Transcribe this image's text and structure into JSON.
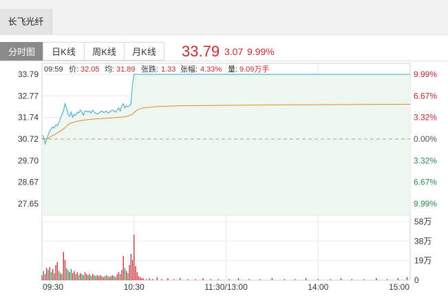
{
  "stock": {
    "name": "长飞光纤"
  },
  "tabs": [
    {
      "label": "分时图",
      "active": true
    },
    {
      "label": "日K线",
      "active": false
    },
    {
      "label": "周K线",
      "active": false
    },
    {
      "label": "月K线",
      "active": false
    }
  ],
  "quote": {
    "price": "33.79",
    "change": "3.07",
    "change_pct": "9.99%"
  },
  "info": {
    "time": "09:59",
    "price_label": "价:",
    "price": "32.05",
    "avg_label": "均:",
    "avg": "31.89",
    "change_label": "张跌:",
    "change": "1.33",
    "pct_label": "张幅:",
    "pct": "4.33%",
    "vol_label": "量:",
    "vol": "9.09万手"
  },
  "colors": {
    "up": "#c8282d",
    "down": "#2e8b57",
    "price_line": "#3aa6c8",
    "avg_line": "#e08a1e",
    "fill": "#eef6f1"
  },
  "chart_data": {
    "type": "line",
    "prev_close": 30.72,
    "y_ticks": [
      "33.79",
      "32.77",
      "31.74",
      "30.72",
      "29.70",
      "28.67",
      "27.65"
    ],
    "pct_ticks": [
      {
        "label": "9.99%",
        "dir": "up"
      },
      {
        "label": "6.67%",
        "dir": "up"
      },
      {
        "label": "3.32%",
        "dir": "up"
      },
      {
        "label": "0.00%",
        "dir": "flat"
      },
      {
        "label": "3.32%",
        "dir": "down"
      },
      {
        "label": "6.67%",
        "dir": "down"
      },
      {
        "label": "9.99%",
        "dir": "down"
      }
    ],
    "ylim": [
      27.65,
      33.79
    ],
    "x_ticks": [
      "09:30",
      "10:30",
      "11:30/13:00",
      "14:00",
      "15:00"
    ],
    "total_minutes": 240,
    "price_series": [
      [
        0,
        30.9
      ],
      [
        1,
        30.85
      ],
      [
        2,
        30.5
      ],
      [
        3,
        30.7
      ],
      [
        4,
        30.9
      ],
      [
        5,
        31.1
      ],
      [
        6,
        31.2
      ],
      [
        7,
        31.3
      ],
      [
        8,
        31.25
      ],
      [
        9,
        31.4
      ],
      [
        10,
        31.35
      ],
      [
        11,
        31.5
      ],
      [
        12,
        31.7
      ],
      [
        13,
        31.9
      ],
      [
        14,
        32.05
      ],
      [
        15,
        32.4
      ],
      [
        16,
        32.2
      ],
      [
        17,
        31.9
      ],
      [
        18,
        31.8
      ],
      [
        19,
        32.0
      ],
      [
        20,
        31.75
      ],
      [
        21,
        31.9
      ],
      [
        22,
        31.85
      ],
      [
        23,
        32.0
      ],
      [
        24,
        31.95
      ],
      [
        25,
        32.1
      ],
      [
        26,
        32.0
      ],
      [
        27,
        31.85
      ],
      [
        28,
        32.05
      ],
      [
        29,
        32.05
      ],
      [
        30,
        32.0
      ],
      [
        31,
        32.05
      ],
      [
        32,
        31.95
      ],
      [
        33,
        32.1
      ],
      [
        34,
        32.0
      ],
      [
        35,
        31.95
      ],
      [
        36,
        31.9
      ],
      [
        37,
        31.95
      ],
      [
        38,
        32.0
      ],
      [
        39,
        32.05
      ],
      [
        40,
        31.98
      ],
      [
        41,
        32.0
      ],
      [
        42,
        32.05
      ],
      [
        43,
        31.95
      ],
      [
        44,
        32.0
      ],
      [
        45,
        32.05
      ],
      [
        46,
        32.1
      ],
      [
        47,
        32.05
      ],
      [
        48,
        32.0
      ],
      [
        49,
        32.1
      ],
      [
        50,
        32.2
      ],
      [
        51,
        32.05
      ],
      [
        52,
        32.3
      ],
      [
        53,
        32.4
      ],
      [
        54,
        32.2
      ],
      [
        55,
        32.3
      ],
      [
        56,
        32.25
      ],
      [
        57,
        32.3
      ],
      [
        58,
        32.4
      ],
      [
        59,
        33.3
      ],
      [
        60,
        33.79
      ],
      [
        61,
        33.79
      ],
      [
        240,
        33.79
      ]
    ],
    "avg_series": [
      [
        0,
        30.75
      ],
      [
        3,
        30.72
      ],
      [
        6,
        30.85
      ],
      [
        10,
        31.0
      ],
      [
        14,
        31.2
      ],
      [
        18,
        31.45
      ],
      [
        22,
        31.55
      ],
      [
        28,
        31.62
      ],
      [
        35,
        31.68
      ],
      [
        45,
        31.72
      ],
      [
        55,
        31.78
      ],
      [
        59,
        31.9
      ],
      [
        62,
        32.1
      ],
      [
        66,
        32.2
      ],
      [
        75,
        32.26
      ],
      [
        90,
        32.3
      ],
      [
        120,
        32.32
      ],
      [
        150,
        32.34
      ],
      [
        180,
        32.35
      ],
      [
        210,
        32.36
      ],
      [
        240,
        32.37
      ]
    ],
    "vol_ticks": [
      "58万",
      "38万",
      "19万",
      "0"
    ],
    "vol_max": 58,
    "volumes": [
      [
        0,
        5,
        "up"
      ],
      [
        1,
        9,
        "down"
      ],
      [
        2,
        6,
        "up"
      ],
      [
        3,
        12,
        "up"
      ],
      [
        4,
        10,
        "down"
      ],
      [
        5,
        13,
        "up"
      ],
      [
        6,
        8,
        "down"
      ],
      [
        7,
        11,
        "up"
      ],
      [
        8,
        7,
        "down"
      ],
      [
        9,
        15,
        "up"
      ],
      [
        10,
        18,
        "up"
      ],
      [
        11,
        9,
        "down"
      ],
      [
        12,
        7,
        "up"
      ],
      [
        13,
        6,
        "down"
      ],
      [
        14,
        28,
        "up"
      ],
      [
        15,
        20,
        "up"
      ],
      [
        16,
        12,
        "down"
      ],
      [
        17,
        10,
        "down"
      ],
      [
        18,
        8,
        "up"
      ],
      [
        19,
        11,
        "down"
      ],
      [
        20,
        7,
        "up"
      ],
      [
        21,
        9,
        "up"
      ],
      [
        22,
        6,
        "down"
      ],
      [
        23,
        8,
        "up"
      ],
      [
        24,
        5,
        "down"
      ],
      [
        25,
        7,
        "up"
      ],
      [
        26,
        6,
        "down"
      ],
      [
        27,
        5,
        "down"
      ],
      [
        28,
        8,
        "up"
      ],
      [
        29,
        6,
        "up"
      ],
      [
        30,
        5,
        "down"
      ],
      [
        31,
        6,
        "up"
      ],
      [
        32,
        4,
        "down"
      ],
      [
        33,
        6,
        "up"
      ],
      [
        34,
        5,
        "down"
      ],
      [
        35,
        4,
        "down"
      ],
      [
        36,
        5,
        "up"
      ],
      [
        37,
        4,
        "up"
      ],
      [
        38,
        5,
        "up"
      ],
      [
        39,
        4,
        "down"
      ],
      [
        40,
        3,
        "up"
      ],
      [
        41,
        4,
        "up"
      ],
      [
        42,
        5,
        "down"
      ],
      [
        43,
        4,
        "down"
      ],
      [
        44,
        3,
        "up"
      ],
      [
        45,
        4,
        "up"
      ],
      [
        46,
        5,
        "up"
      ],
      [
        47,
        4,
        "down"
      ],
      [
        48,
        3,
        "down"
      ],
      [
        49,
        6,
        "up"
      ],
      [
        50,
        8,
        "up"
      ],
      [
        51,
        6,
        "down"
      ],
      [
        52,
        10,
        "up"
      ],
      [
        53,
        24,
        "up"
      ],
      [
        54,
        12,
        "down"
      ],
      [
        55,
        9,
        "up"
      ],
      [
        56,
        7,
        "down"
      ],
      [
        57,
        15,
        "up"
      ],
      [
        58,
        26,
        "up"
      ],
      [
        59,
        20,
        "up"
      ],
      [
        60,
        45,
        "up"
      ],
      [
        61,
        14,
        "up"
      ],
      [
        62,
        8,
        "up"
      ],
      [
        63,
        4,
        "up"
      ],
      [
        64,
        3,
        "up"
      ],
      [
        65,
        2,
        "up"
      ],
      [
        66,
        2,
        "up"
      ],
      [
        68,
        1,
        "up"
      ],
      [
        70,
        2,
        "up"
      ],
      [
        72,
        1,
        "up"
      ],
      [
        75,
        3,
        "up"
      ],
      [
        78,
        1,
        "up"
      ],
      [
        82,
        2,
        "up"
      ],
      [
        86,
        1,
        "up"
      ],
      [
        90,
        2,
        "up"
      ],
      [
        95,
        1,
        "up"
      ],
      [
        100,
        1,
        "up"
      ],
      [
        105,
        2,
        "up"
      ],
      [
        110,
        1,
        "up"
      ],
      [
        115,
        1,
        "up"
      ],
      [
        122,
        1,
        "up"
      ],
      [
        128,
        2,
        "up"
      ],
      [
        135,
        1,
        "up"
      ],
      [
        142,
        1,
        "up"
      ],
      [
        150,
        2,
        "up"
      ],
      [
        158,
        1,
        "up"
      ],
      [
        165,
        1,
        "up"
      ],
      [
        172,
        2,
        "up"
      ],
      [
        180,
        1,
        "up"
      ],
      [
        188,
        1,
        "up"
      ],
      [
        195,
        2,
        "up"
      ],
      [
        202,
        1,
        "up"
      ],
      [
        210,
        1,
        "up"
      ],
      [
        218,
        2,
        "up"
      ],
      [
        225,
        1,
        "up"
      ],
      [
        232,
        2,
        "up"
      ],
      [
        238,
        3,
        "up"
      ]
    ]
  }
}
